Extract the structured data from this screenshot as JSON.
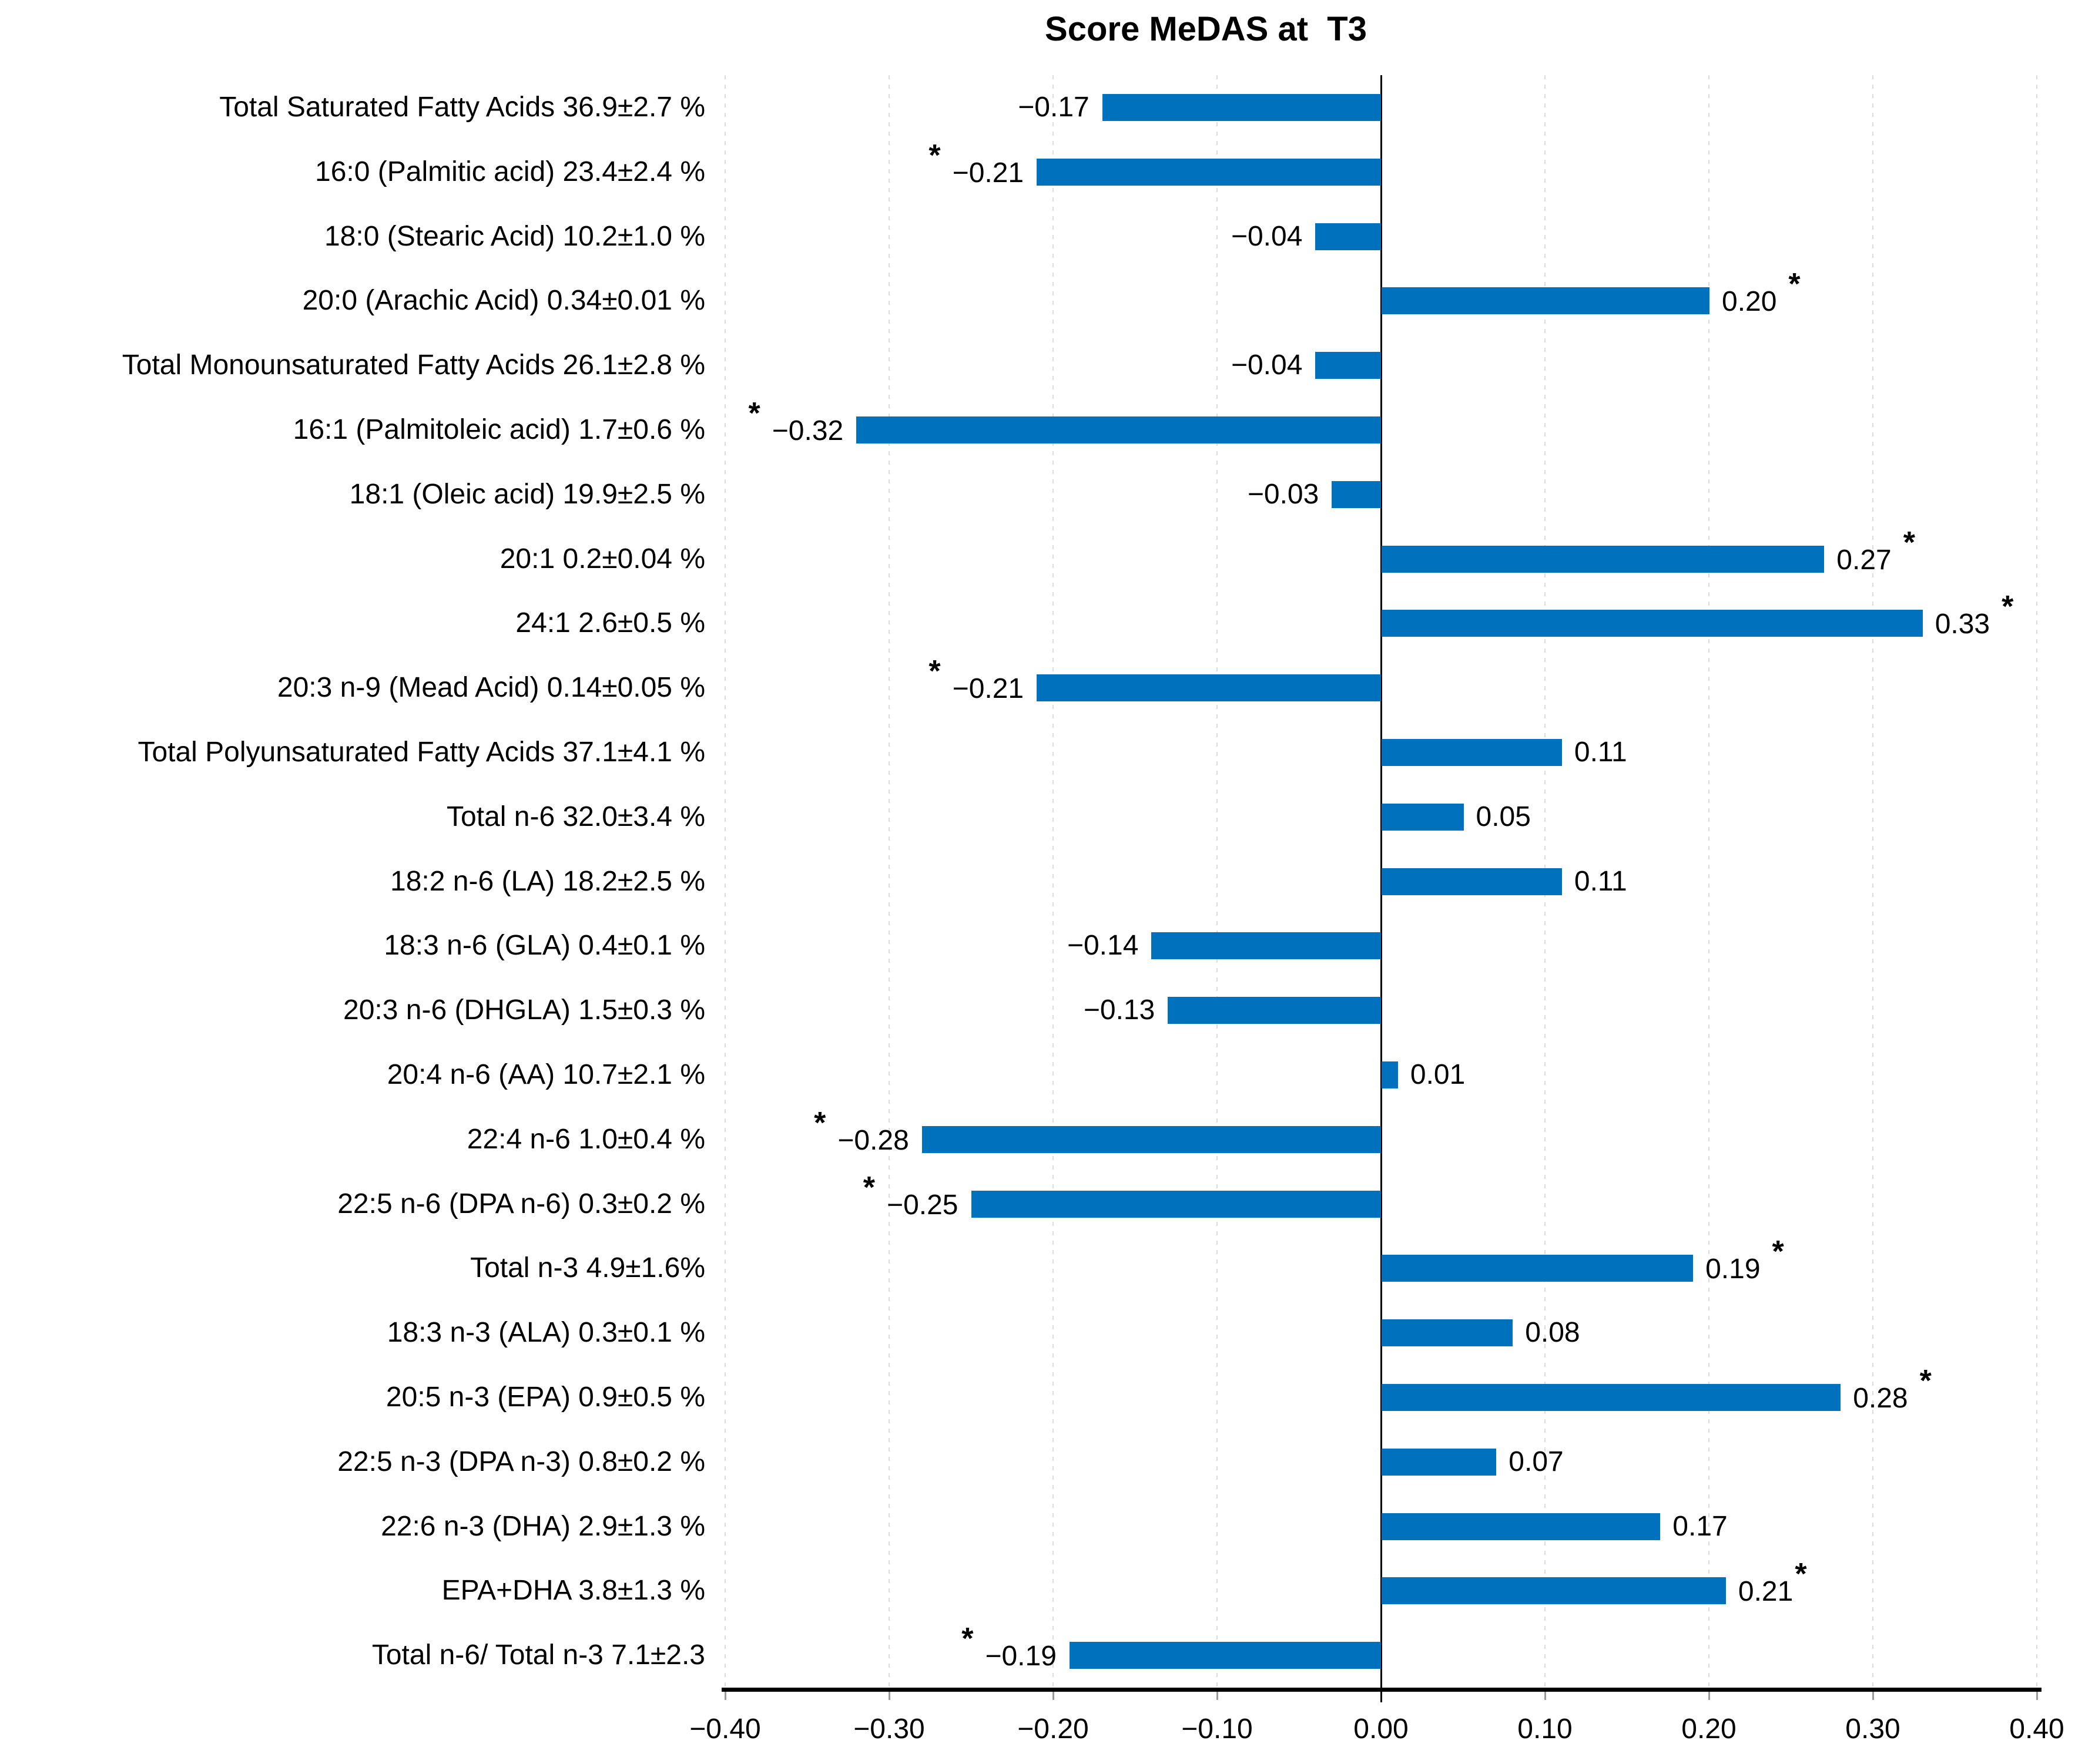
{
  "chart_data": {
    "type": "bar",
    "orientation": "horizontal",
    "title": "Score MeDAS at  T3",
    "xlabel": "",
    "ylabel": "",
    "xlim": [
      -0.4,
      0.4
    ],
    "x_tick_values": [
      -0.4,
      -0.3,
      -0.2,
      -0.1,
      0.0,
      0.1,
      0.2,
      0.3,
      0.4
    ],
    "x_tick_labels": [
      "−0.40",
      "−0.30",
      "−0.20",
      "−0.10",
      "0.00",
      "0.10",
      "0.20",
      "0.30",
      "0.40"
    ],
    "grid": "vertical-dotted",
    "legend": "none",
    "bar_color": "#0072BD",
    "gridline_color": "#dcdcdc",
    "significance_marker": "*",
    "items": [
      {
        "label": "Total Saturated Fatty Acids 36.9±2.7 %",
        "value": -0.17,
        "display": "−0.17",
        "star": false
      },
      {
        "label": "16:0 (Palmitic acid) 23.4±2.4 %",
        "value": -0.21,
        "display": "−0.21",
        "star": true
      },
      {
        "label": "18:0 (Stearic Acid) 10.2±1.0 %",
        "value": -0.04,
        "display": "−0.04",
        "star": false
      },
      {
        "label": "20:0 (Arachic Acid) 0.34±0.01 %",
        "value": 0.2,
        "display": "0.20",
        "star": true
      },
      {
        "label": "Total Monounsaturated Fatty Acids 26.1±2.8 %",
        "value": -0.04,
        "display": "−0.04",
        "star": false
      },
      {
        "label": "16:1 (Palmitoleic acid) 1.7±0.6 %",
        "value": -0.32,
        "display": "−0.32",
        "star": true
      },
      {
        "label": "18:1 (Oleic acid) 19.9±2.5 %",
        "value": -0.03,
        "display": "−0.03",
        "star": false
      },
      {
        "label": "20:1 0.2±0.04 %",
        "value": 0.27,
        "display": "0.27",
        "star": true
      },
      {
        "label": "24:1 2.6±0.5 %",
        "value": 0.33,
        "display": "0.33",
        "star": true
      },
      {
        "label": "20:3 n-9 (Mead Acid) 0.14±0.05 %",
        "value": -0.21,
        "display": "−0.21",
        "star": true
      },
      {
        "label": "Total Polyunsaturated Fatty Acids 37.1±4.1 %",
        "value": 0.11,
        "display": "0.11",
        "star": false
      },
      {
        "label": "Total n-6 32.0±3.4 %",
        "value": 0.05,
        "display": "0.05",
        "star": false
      },
      {
        "label": "18:2 n-6 (LA) 18.2±2.5 %",
        "value": 0.11,
        "display": "0.11",
        "star": false
      },
      {
        "label": "18:3 n-6 (GLA) 0.4±0.1 %",
        "value": -0.14,
        "display": "−0.14",
        "star": false
      },
      {
        "label": "20:3 n-6 (DHGLA) 1.5±0.3 %",
        "value": -0.13,
        "display": "−0.13",
        "star": false
      },
      {
        "label": "20:4 n-6 (AA) 10.7±2.1 %",
        "value": 0.01,
        "display": "0.01",
        "star": false
      },
      {
        "label": "22:4 n-6 1.0±0.4 %",
        "value": -0.28,
        "display": "−0.28",
        "star": true
      },
      {
        "label": "22:5 n-6 (DPA n-6) 0.3±0.2 %",
        "value": -0.25,
        "display": "−0.25",
        "star": true
      },
      {
        "label": "Total n-3 4.9±1.6%",
        "value": 0.19,
        "display": "0.19",
        "star": true
      },
      {
        "label": "18:3 n-3 (ALA) 0.3±0.1 %",
        "value": 0.08,
        "display": "0.08",
        "star": false
      },
      {
        "label": "20:5 n-3 (EPA) 0.9±0.5 %",
        "value": 0.28,
        "display": "0.28",
        "star": true
      },
      {
        "label": "22:5 n-3 (DPA n-3) 0.8±0.2 %",
        "value": 0.07,
        "display": "0.07",
        "star": false
      },
      {
        "label": "22:6 n-3 (DHA) 2.9±1.3 %",
        "value": 0.17,
        "display": "0.17",
        "star": false
      },
      {
        "label": "EPA+DHA 3.8±1.3 %",
        "value": 0.21,
        "display": "0.21",
        "star": true,
        "star_tight": true
      },
      {
        "label": "Total n-6/ Total n-3 7.1±2.3",
        "value": -0.19,
        "display": "−0.19",
        "star": true
      }
    ]
  }
}
